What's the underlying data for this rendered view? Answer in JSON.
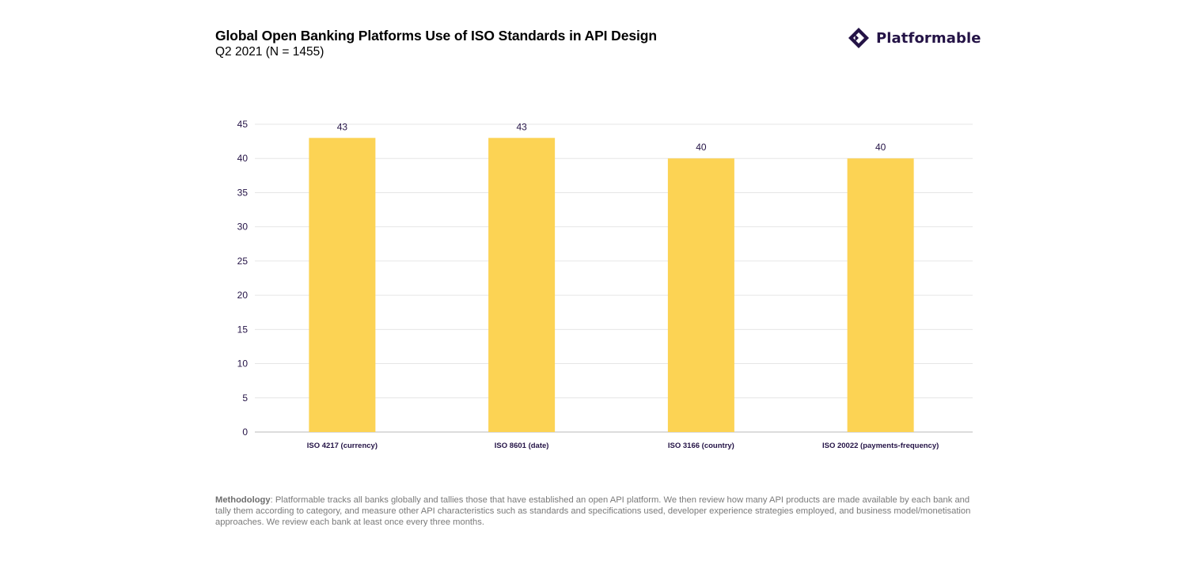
{
  "header": {
    "title": "Global Open Banking Platforms Use of ISO Standards in API Design",
    "subtitle": "Q2 2021 (N = 1455)"
  },
  "logo": {
    "text": "Platformable",
    "icon": "diamond-logo-icon",
    "color": "#241346"
  },
  "chart_data": {
    "type": "bar",
    "categories": [
      "ISO 4217 (currency)",
      "ISO 8601 (date)",
      "ISO 3166 (country)",
      "ISO 20022 (payments-frequency)"
    ],
    "values": [
      43,
      43,
      40,
      40
    ],
    "data_labels": [
      "43",
      "43",
      "40",
      "40"
    ],
    "title": "Global Open Banking Platforms Use of ISO Standards in API Design",
    "subtitle": "Q2 2021 (N = 1455)",
    "xlabel": "",
    "ylabel": "",
    "ylim": [
      0,
      45
    ],
    "yticks": [
      0,
      5,
      10,
      15,
      20,
      25,
      30,
      35,
      40,
      45
    ],
    "grid": true,
    "legend": "none",
    "bar_color": "#fcd354",
    "label_color": "#241346"
  },
  "footer": {
    "methodology_label": "Methodology",
    "methodology_text": ": Platformable tracks all banks globally and tallies those that have established an open API platform. We then review how many API products are made available by each bank and tally them according to category, and measure other API characteristics such as standards and specifications used, developer experience strategies employed, and business model/monetisation approaches. We review each bank at least once every three months."
  }
}
